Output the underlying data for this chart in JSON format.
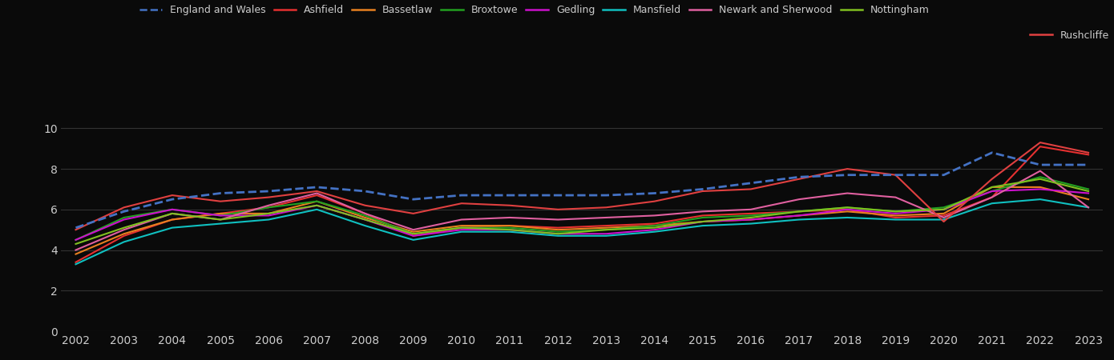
{
  "years": [
    2002,
    2003,
    2004,
    2005,
    2006,
    2007,
    2008,
    2009,
    2010,
    2011,
    2012,
    2013,
    2014,
    2015,
    2016,
    2017,
    2018,
    2019,
    2020,
    2021,
    2022,
    2023
  ],
  "series": {
    "England and Wales": [
      5.1,
      5.9,
      6.5,
      6.8,
      6.9,
      7.1,
      6.9,
      6.5,
      6.7,
      6.7,
      6.7,
      6.7,
      6.8,
      7.0,
      7.3,
      7.6,
      7.7,
      7.7,
      7.7,
      8.8,
      8.2,
      8.2
    ],
    "Ashfield": [
      3.4,
      4.7,
      5.5,
      5.8,
      6.1,
      6.7,
      5.8,
      4.7,
      5.1,
      5.2,
      5.1,
      5.2,
      5.3,
      5.7,
      5.8,
      5.9,
      6.0,
      5.6,
      5.7,
      6.6,
      9.1,
      8.7
    ],
    "Bassetlaw": [
      3.8,
      4.8,
      5.5,
      5.8,
      5.8,
      6.4,
      5.6,
      4.9,
      5.2,
      5.2,
      5.0,
      5.1,
      5.2,
      5.4,
      5.5,
      5.7,
      5.9,
      5.7,
      5.8,
      7.1,
      7.1,
      6.5
    ],
    "Broxtowe": [
      4.5,
      5.6,
      6.0,
      5.7,
      6.1,
      6.4,
      5.7,
      4.8,
      5.1,
      5.1,
      4.9,
      5.0,
      5.2,
      5.6,
      5.7,
      5.9,
      6.1,
      5.9,
      6.1,
      6.9,
      7.6,
      7.0
    ],
    "Gedling": [
      4.5,
      5.5,
      6.0,
      5.7,
      5.7,
      6.2,
      5.5,
      4.7,
      5.0,
      5.0,
      4.8,
      4.8,
      5.0,
      5.4,
      5.5,
      5.7,
      6.0,
      5.8,
      6.0,
      6.9,
      7.0,
      6.8
    ],
    "Mansfield": [
      3.3,
      4.4,
      5.1,
      5.3,
      5.5,
      6.0,
      5.2,
      4.5,
      4.9,
      4.9,
      4.7,
      4.7,
      4.9,
      5.2,
      5.3,
      5.5,
      5.6,
      5.5,
      5.5,
      6.3,
      6.5,
      6.1
    ],
    "Newark and Sherwood": [
      4.0,
      5.0,
      5.8,
      5.5,
      6.2,
      6.8,
      5.8,
      5.0,
      5.5,
      5.6,
      5.5,
      5.6,
      5.7,
      5.9,
      6.0,
      6.5,
      6.8,
      6.6,
      5.6,
      6.6,
      7.9,
      6.1
    ],
    "Nottingham": [
      4.3,
      5.1,
      5.8,
      5.5,
      5.8,
      6.2,
      5.5,
      4.8,
      5.1,
      5.0,
      4.8,
      5.0,
      5.1,
      5.4,
      5.6,
      5.9,
      6.1,
      5.9,
      6.0,
      7.1,
      7.5,
      6.9
    ],
    "Rushcliffe": [
      5.0,
      6.1,
      6.7,
      6.4,
      6.6,
      6.9,
      6.2,
      5.8,
      6.3,
      6.2,
      6.0,
      6.1,
      6.4,
      6.9,
      7.0,
      7.5,
      8.0,
      7.7,
      5.4,
      7.5,
      9.3,
      8.8
    ]
  },
  "colors": {
    "England and Wales": "#4472c4",
    "Ashfield": "#e63030",
    "Bassetlaw": "#e88020",
    "Broxtowe": "#22a020",
    "Gedling": "#cc10cc",
    "Mansfield": "#10c0c0",
    "Newark and Sherwood": "#e060a0",
    "Nottingham": "#80c020",
    "Rushcliffe": "#e04040"
  },
  "linestyles": {
    "England and Wales": "--",
    "Ashfield": "-",
    "Bassetlaw": "-",
    "Broxtowe": "-",
    "Gedling": "-",
    "Mansfield": "-",
    "Newark and Sherwood": "-",
    "Nottingham": "-",
    "Rushcliffe": "-"
  },
  "background_color": "#0a0a0a",
  "text_color": "#cccccc",
  "grid_color": "#333333",
  "ylim": [
    0,
    11
  ],
  "yticks": [
    0,
    2,
    4,
    6,
    8,
    10
  ],
  "linewidth": 1.5,
  "legend_fontsize": 9,
  "tick_fontsize": 10
}
